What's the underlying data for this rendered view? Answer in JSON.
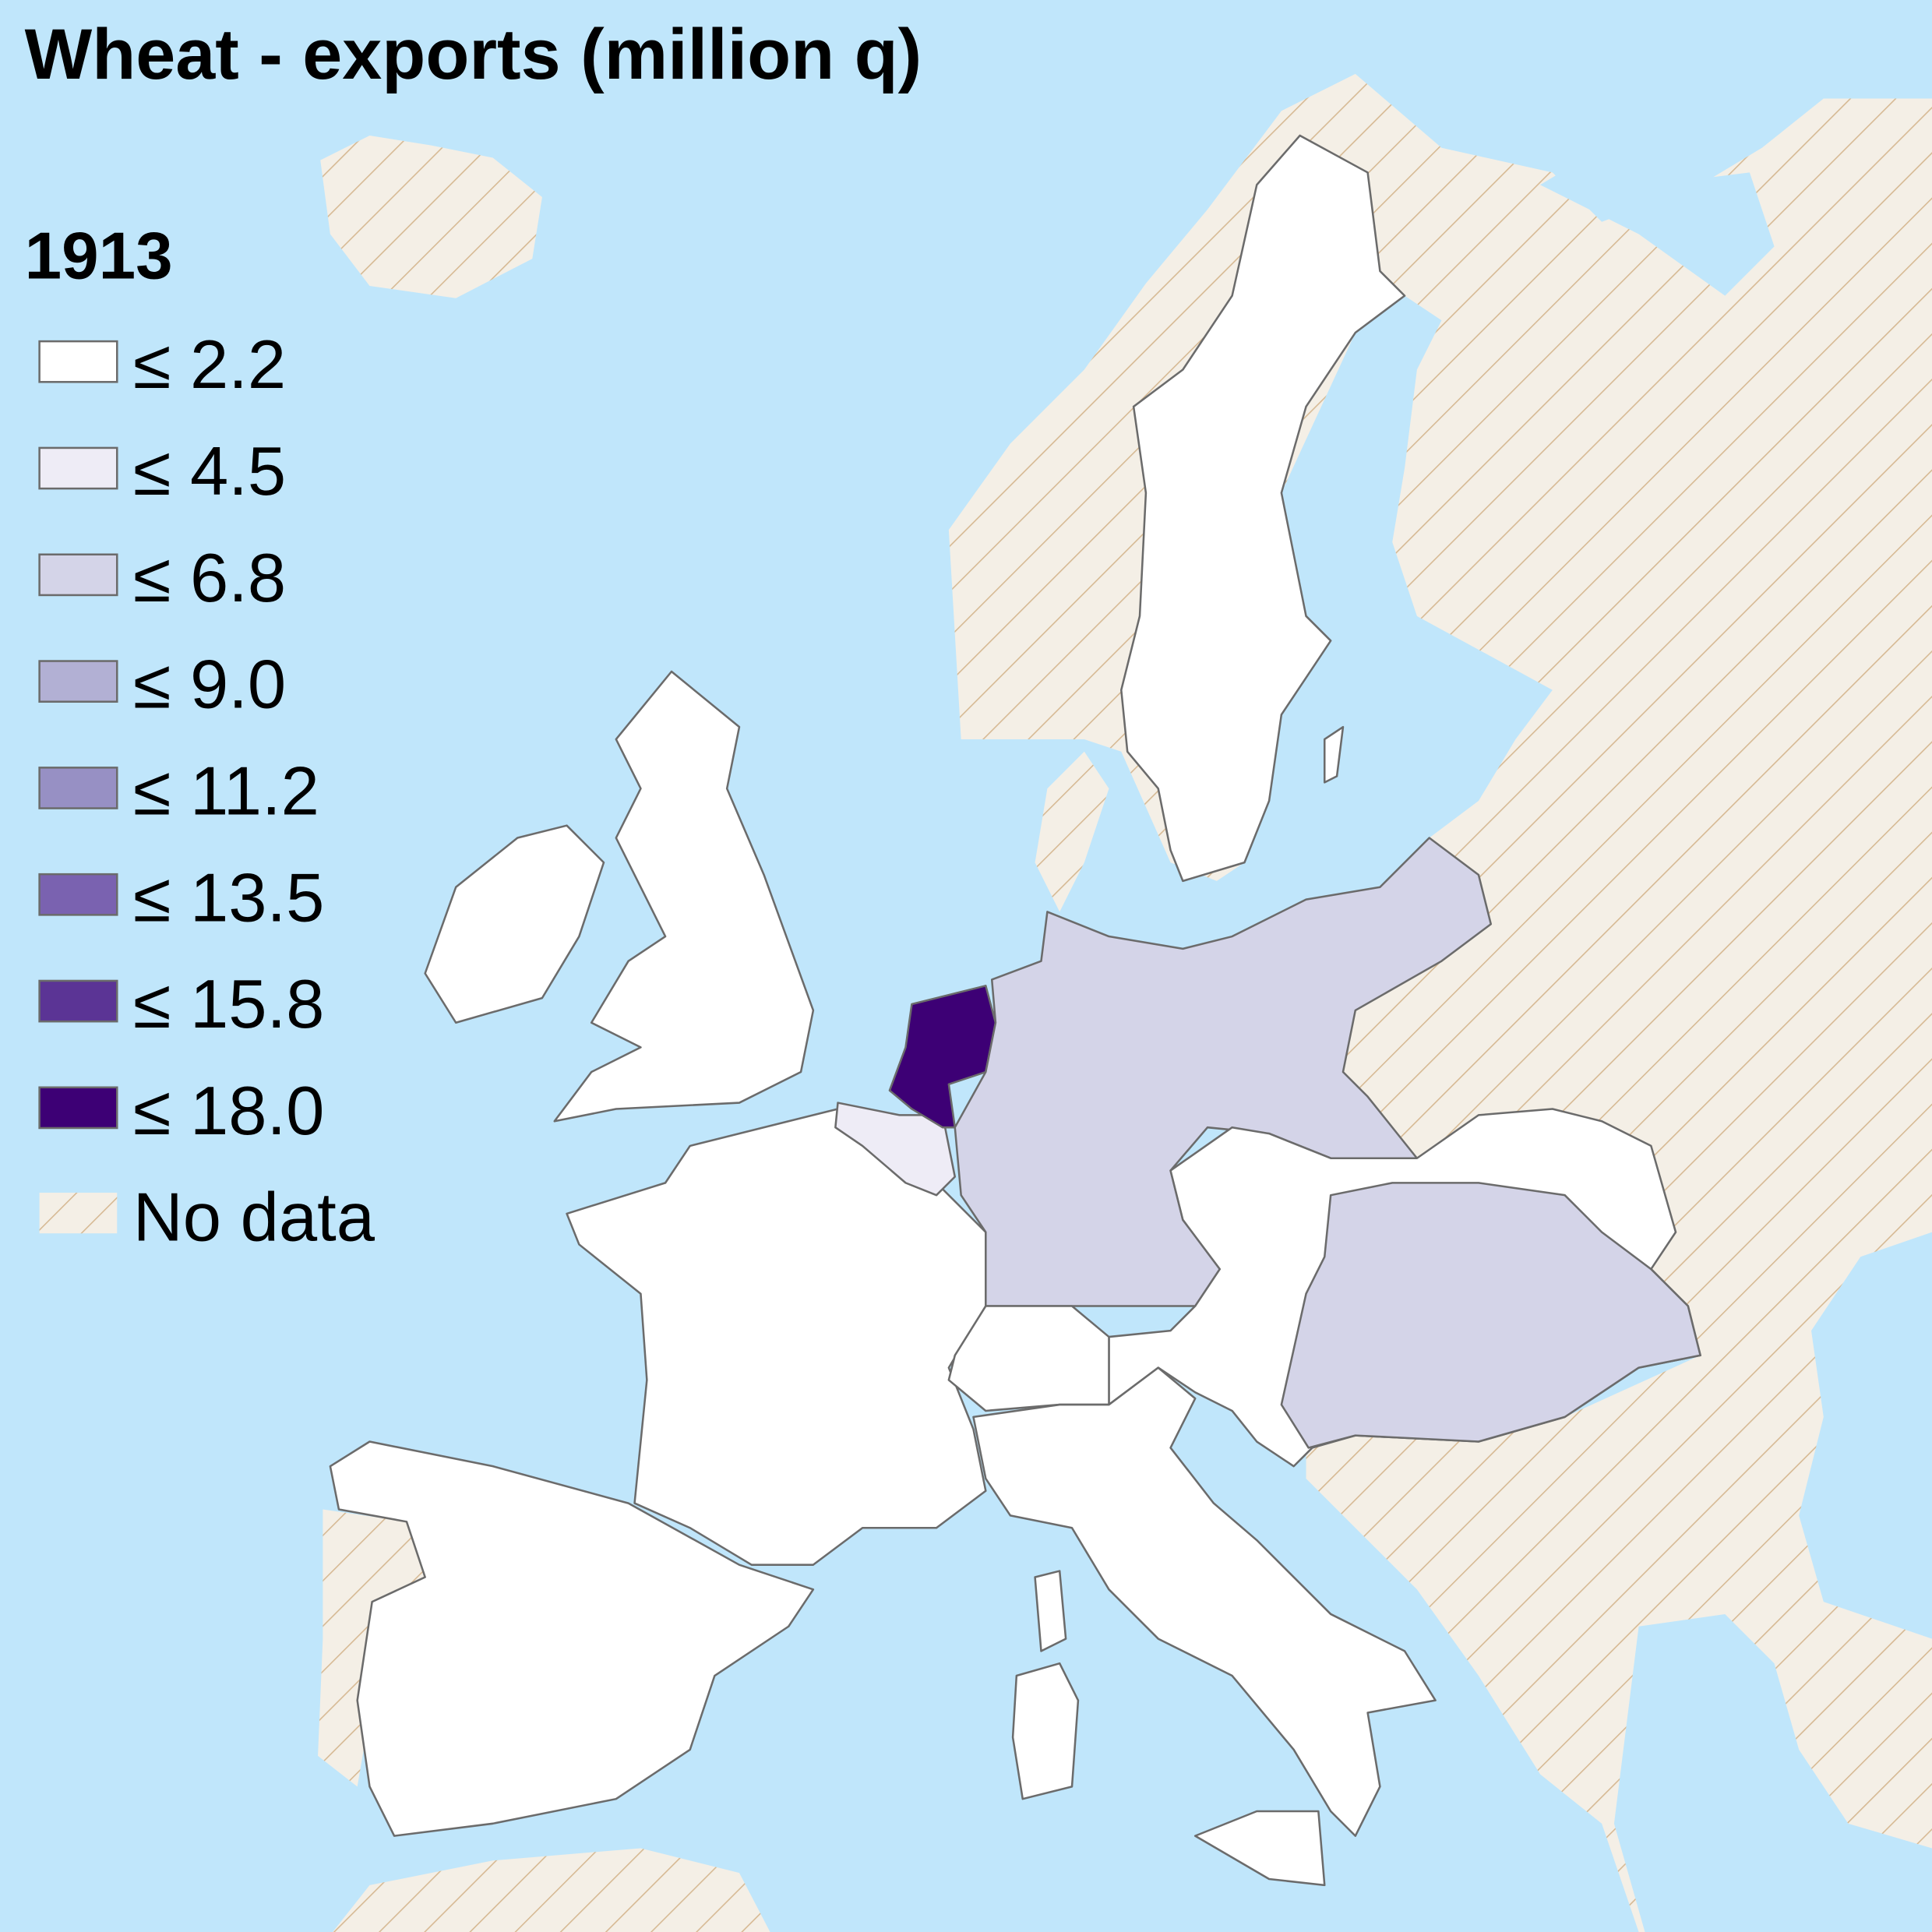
{
  "title": "Wheat - exports (million q)",
  "legend": {
    "title": "1913",
    "items": [
      {
        "label": "≤ 2.2",
        "color": "#ffffff"
      },
      {
        "label": "≤ 4.5",
        "color": "#eeecf6"
      },
      {
        "label": "≤ 6.8",
        "color": "#d4d4e8"
      },
      {
        "label": "≤ 9.0",
        "color": "#b2b0d4"
      },
      {
        "label": "≤ 11.2",
        "color": "#9790c4"
      },
      {
        "label": "≤ 13.5",
        "color": "#7a62b0"
      },
      {
        "label": "≤ 15.8",
        "color": "#5b3495"
      },
      {
        "label": "≤ 18.0",
        "color": "#3d0075"
      }
    ],
    "no_data": "No data"
  }
}
